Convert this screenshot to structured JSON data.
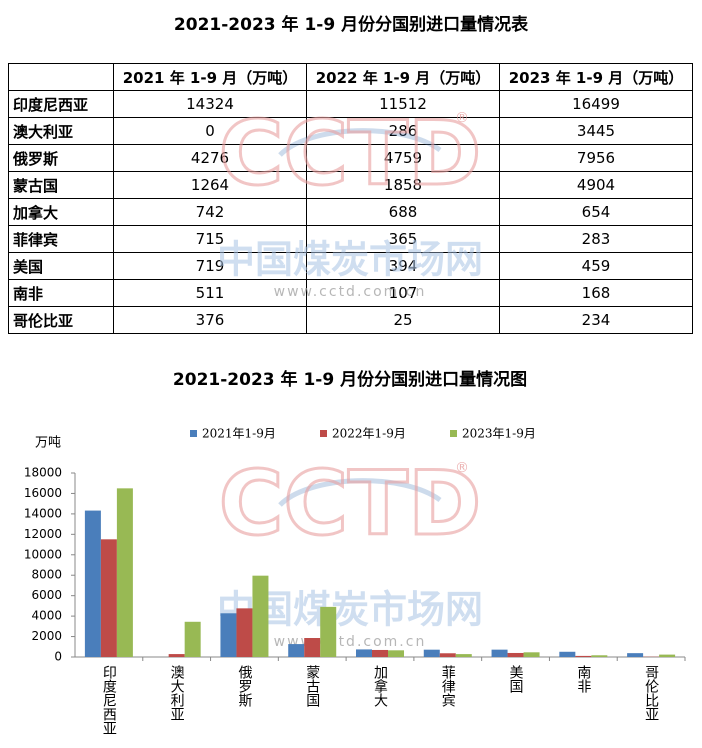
{
  "table": {
    "title": "2021-2023 年 1-9 月份分国别进口量情况表",
    "header": [
      "2021 年 1-9 月（万吨）",
      "2022 年 1-9 月（万吨）",
      "2023 年 1-9 月（万吨）"
    ],
    "rows": [
      [
        "印度尼西亚",
        14324,
        11512,
        16499
      ],
      [
        "澳大利亚",
        0,
        286,
        3445
      ],
      [
        "俄罗斯",
        4276,
        4759,
        7956
      ],
      [
        "蒙古国",
        1264,
        1858,
        4904
      ],
      [
        "加拿大",
        742,
        688,
        654
      ],
      [
        "菲律宾",
        715,
        365,
        283
      ],
      [
        "美国",
        719,
        394,
        459
      ],
      [
        "南非",
        511,
        107,
        168
      ],
      [
        "哥伦比亚",
        376,
        25,
        234
      ]
    ]
  },
  "watermark": {
    "logo": "CCTD",
    "mark": "®",
    "name": "中国煤炭市场网",
    "url": "www.cctd.com.cn"
  },
  "chart_data": {
    "type": "bar",
    "title": "2021-2023 年 1-9 月份分国别进口量情况图",
    "y_label": "万吨",
    "categories": [
      "印度尼西亚",
      "澳大利亚",
      "俄罗斯",
      "蒙古国",
      "加拿大",
      "菲律宾",
      "美国",
      "南非",
      "哥伦比亚"
    ],
    "series": [
      {
        "name": "2021年1-9月",
        "color": "#4a7ebb",
        "values": [
          14324,
          0,
          4276,
          1264,
          742,
          715,
          719,
          511,
          376
        ]
      },
      {
        "name": "2022年1-9月",
        "color": "#be4b48",
        "values": [
          11512,
          286,
          4759,
          1858,
          688,
          365,
          394,
          107,
          25
        ]
      },
      {
        "name": "2023年1-9月",
        "color": "#98b954",
        "values": [
          16499,
          3445,
          7956,
          4904,
          654,
          283,
          459,
          168,
          234
        ]
      }
    ],
    "ylim": [
      0,
      18000
    ],
    "yticks": [
      0,
      2000,
      4000,
      6000,
      8000,
      10000,
      12000,
      14000,
      16000,
      18000
    ],
    "legend": "top"
  }
}
